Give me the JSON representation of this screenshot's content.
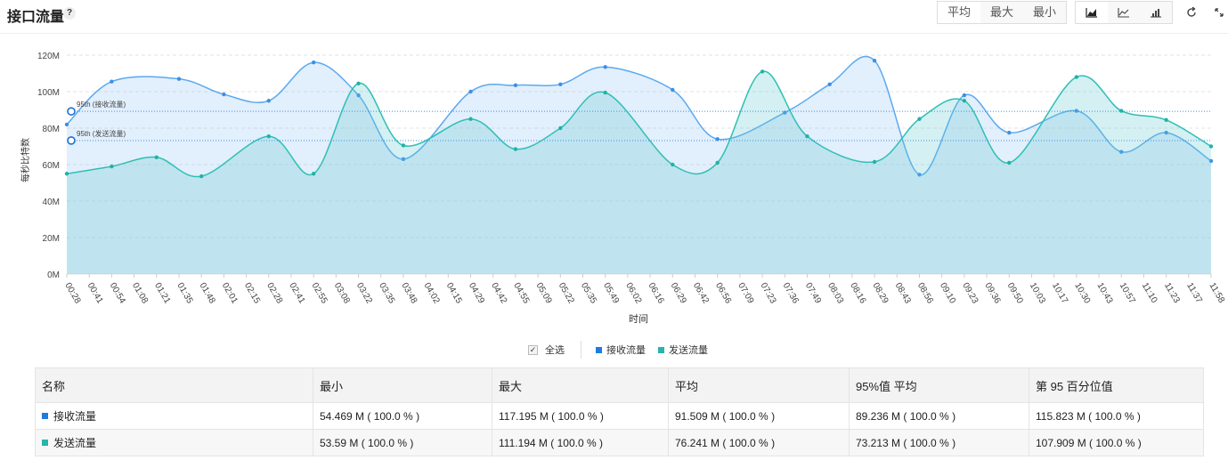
{
  "header": {
    "title": "接口流量",
    "help": "?",
    "agg_buttons": [
      {
        "label": "平均",
        "active": true
      },
      {
        "label": "最大",
        "active": false
      },
      {
        "label": "最小",
        "active": false
      }
    ],
    "chart_types": [
      "area-chart-icon",
      "line-chart-icon",
      "bar-chart-icon"
    ],
    "actions": [
      "refresh-icon",
      "expand-icon"
    ]
  },
  "colors": {
    "receive": "#5aa9f0",
    "send": "#2fbfb3",
    "receive_sw": "#1e7be0",
    "send_sw": "#26b5aa"
  },
  "legend": {
    "select_all": "全选",
    "items": [
      "接收流量",
      "发送流量"
    ]
  },
  "table": {
    "headers": [
      "名称",
      "最小",
      "最大",
      "平均",
      "95%值 平均",
      "第 95 百分位值"
    ],
    "rows": [
      {
        "name": "接收流量",
        "min": "54.469 M ( 100.0 % )",
        "max": "117.195 M ( 100.0 % )",
        "avg": "91.509 M ( 100.0 % )",
        "p95avg": "89.236 M ( 100.0 % )",
        "p95": "115.823 M ( 100.0 % )"
      },
      {
        "name": "发送流量",
        "min": "53.59 M ( 100.0 % )",
        "max": "111.194 M ( 100.0 % )",
        "avg": "76.241 M ( 100.0 % )",
        "p95avg": "73.213 M ( 100.0 % )",
        "p95": "107.909 M ( 100.0 % )"
      }
    ]
  },
  "chart_data": {
    "type": "area",
    "title": "接口流量",
    "xlabel": "时间",
    "ylabel": "每秒比特数",
    "ylim": [
      0,
      120
    ],
    "y_ticks": [
      "0M",
      "20M",
      "40M",
      "60M",
      "80M",
      "100M",
      "120M"
    ],
    "x_ticks": [
      "00:28",
      "00:41",
      "00:54",
      "01:08",
      "01:21",
      "01:35",
      "01:48",
      "02:01",
      "02:15",
      "02:28",
      "02:41",
      "02:55",
      "03:08",
      "03:22",
      "03:35",
      "03:48",
      "04:02",
      "04:15",
      "04:29",
      "04:42",
      "04:55",
      "05:09",
      "05:22",
      "05:35",
      "05:49",
      "06:02",
      "06:16",
      "06:29",
      "06:42",
      "06:56",
      "07:09",
      "07:23",
      "07:36",
      "07:49",
      "08:03",
      "08:16",
      "08:29",
      "08:43",
      "08:56",
      "09:10",
      "09:23",
      "09:36",
      "09:50",
      "10:03",
      "10:17",
      "10:30",
      "10:43",
      "10:57",
      "11:10",
      "11:23",
      "11:37",
      "11:58"
    ],
    "grid": true,
    "legend_position": "bottom",
    "markLines": [
      {
        "label": "95th (接收流量)",
        "value": 89.2
      },
      {
        "label": "95th (发送流量)",
        "value": 73.2
      }
    ],
    "series": [
      {
        "name": "接收流量",
        "points": [
          [
            "00:28",
            82
          ],
          [
            "00:54",
            105.5
          ],
          [
            "01:35",
            107
          ],
          [
            "02:01",
            98.5
          ],
          [
            "02:28",
            95
          ],
          [
            "02:55",
            116
          ],
          [
            "03:22",
            98
          ],
          [
            "03:48",
            63
          ],
          [
            "04:29",
            100
          ],
          [
            "04:55",
            103.5
          ],
          [
            "05:22",
            104
          ],
          [
            "05:49",
            113.5
          ],
          [
            "06:29",
            101
          ],
          [
            "06:56",
            74
          ],
          [
            "07:36",
            88.5
          ],
          [
            "08:03",
            104
          ],
          [
            "08:29",
            117
          ],
          [
            "08:56",
            54.5
          ],
          [
            "09:23",
            98
          ],
          [
            "09:50",
            77.5
          ],
          [
            "10:30",
            89.5
          ],
          [
            "10:57",
            67
          ],
          [
            "11:23",
            77.5
          ],
          [
            "11:58",
            62
          ]
        ]
      },
      {
        "name": "发送流量",
        "points": [
          [
            "00:28",
            55
          ],
          [
            "00:54",
            59
          ],
          [
            "01:21",
            64
          ],
          [
            "01:48",
            53.6
          ],
          [
            "02:28",
            75.5
          ],
          [
            "02:55",
            55
          ],
          [
            "03:22",
            104.5
          ],
          [
            "03:48",
            70.5
          ],
          [
            "04:29",
            85
          ],
          [
            "04:55",
            68.5
          ],
          [
            "05:22",
            80
          ],
          [
            "05:49",
            99.5
          ],
          [
            "06:29",
            60
          ],
          [
            "06:56",
            61
          ],
          [
            "07:23",
            111
          ],
          [
            "07:49",
            75.5
          ],
          [
            "08:29",
            61.5
          ],
          [
            "08:56",
            85
          ],
          [
            "09:23",
            95
          ],
          [
            "09:50",
            61
          ],
          [
            "10:30",
            108
          ],
          [
            "10:57",
            89.5
          ],
          [
            "11:23",
            84.5
          ],
          [
            "11:58",
            70
          ]
        ]
      }
    ]
  }
}
